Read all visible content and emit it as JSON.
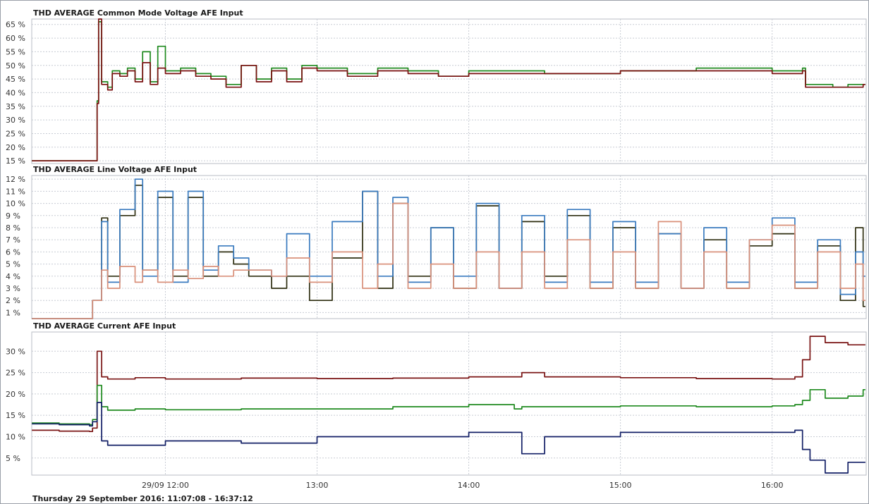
{
  "footer": "Thursday 29 September 2016: 11:07:08 - 16:37:12",
  "x_ticks": [
    {
      "label": "29/09 12:00",
      "t": 12.0
    },
    {
      "label": "13:00",
      "t": 13.0
    },
    {
      "label": "14:00",
      "t": 14.0
    },
    {
      "label": "15:00",
      "t": 15.0
    },
    {
      "label": "16:00",
      "t": 16.0
    }
  ],
  "chart_data": [
    {
      "type": "line",
      "title": "THD AVERAGE Common Mode Voltage AFE Input",
      "xlim": [
        11.119,
        16.62
      ],
      "ylim": [
        14,
        67
      ],
      "y_ticks": [
        15,
        20,
        25,
        30,
        35,
        40,
        45,
        50,
        55,
        60,
        65
      ],
      "y_tick_labels": [
        "15 %",
        "20 %",
        "25 %",
        "30 %",
        "35 %",
        "40 %",
        "45 %",
        "50 %",
        "55 %",
        "60 %",
        "65 %"
      ],
      "grid": true,
      "series": [
        {
          "color": "#1f8a1f",
          "x": [
            11.12,
            11.5,
            11.52,
            11.55,
            11.56,
            11.58,
            11.62,
            11.65,
            11.7,
            11.75,
            11.8,
            11.85,
            11.9,
            11.95,
            12.0,
            12.1,
            12.2,
            12.3,
            12.4,
            12.5,
            12.6,
            12.7,
            12.8,
            12.9,
            13.0,
            13.2,
            13.4,
            13.6,
            13.8,
            14.0,
            14.5,
            15.0,
            15.5,
            16.0,
            16.2,
            16.22,
            16.3,
            16.4,
            16.5,
            16.6
          ],
          "y": [
            15,
            15,
            15,
            37,
            66,
            44,
            42,
            48,
            47,
            49,
            45,
            55,
            44,
            57,
            48,
            49,
            47,
            46,
            43,
            50,
            45,
            49,
            45,
            50,
            49,
            47,
            49,
            48,
            46,
            48,
            47,
            48,
            49,
            48,
            49,
            43,
            43,
            42,
            43,
            43
          ]
        },
        {
          "color": "#7a1010",
          "x": [
            11.12,
            11.5,
            11.52,
            11.55,
            11.56,
            11.58,
            11.62,
            11.65,
            11.7,
            11.75,
            11.8,
            11.85,
            11.9,
            11.95,
            12.0,
            12.1,
            12.2,
            12.3,
            12.4,
            12.5,
            12.6,
            12.7,
            12.8,
            12.9,
            13.0,
            13.2,
            13.4,
            13.6,
            13.8,
            14.0,
            14.5,
            15.0,
            15.5,
            16.0,
            16.2,
            16.22,
            16.3,
            16.4,
            16.5,
            16.6
          ],
          "y": [
            15,
            15,
            15,
            36,
            67,
            43,
            41,
            47,
            46,
            48,
            44,
            51,
            43,
            49,
            47,
            48,
            46,
            45,
            42,
            50,
            44,
            48,
            44,
            49,
            48,
            46,
            48,
            47,
            46,
            47,
            47,
            48,
            48,
            47,
            48,
            42,
            42,
            42,
            42,
            43
          ]
        }
      ]
    },
    {
      "type": "line",
      "title": "THD AVERAGE Line Voltage AFE Input",
      "xlim": [
        11.119,
        16.62
      ],
      "ylim": [
        0.5,
        12.3
      ],
      "y_ticks": [
        1,
        2,
        3,
        4,
        5,
        6,
        7,
        8,
        9,
        10,
        11,
        12
      ],
      "y_tick_labels": [
        "1 %",
        "2 %",
        "3 %",
        "4 %",
        "5 %",
        "6 %",
        "7 %",
        "8 %",
        "9 %",
        "10 %",
        "11 %",
        "12 %"
      ],
      "grid": true,
      "series": [
        {
          "color": "#2e2e10",
          "x": [
            11.12,
            11.5,
            11.52,
            11.58,
            11.62,
            11.7,
            11.8,
            11.85,
            11.95,
            12.05,
            12.15,
            12.25,
            12.35,
            12.45,
            12.55,
            12.7,
            12.8,
            12.95,
            13.1,
            13.3,
            13.4,
            13.5,
            13.6,
            13.75,
            13.9,
            14.05,
            14.2,
            14.35,
            14.5,
            14.65,
            14.8,
            14.95,
            15.1,
            15.25,
            15.4,
            15.55,
            15.7,
            15.85,
            16.0,
            16.15,
            16.3,
            16.45,
            16.55,
            16.6
          ],
          "y": [
            0.5,
            0.5,
            2,
            8.8,
            4,
            9,
            11.5,
            4.5,
            10.5,
            4,
            10.5,
            4,
            6,
            5,
            4,
            3,
            4,
            2,
            5.5,
            11,
            3,
            10,
            4,
            8,
            3,
            9.8,
            3,
            8.5,
            4,
            9,
            3,
            8,
            3,
            7.5,
            3,
            7,
            3,
            6.5,
            7.5,
            3,
            6.5,
            2,
            8,
            1.5
          ]
        },
        {
          "color": "#3a7bbf",
          "x": [
            11.12,
            11.5,
            11.52,
            11.58,
            11.62,
            11.7,
            11.8,
            11.85,
            11.95,
            12.05,
            12.15,
            12.25,
            12.35,
            12.45,
            12.55,
            12.7,
            12.8,
            12.95,
            13.1,
            13.3,
            13.4,
            13.5,
            13.6,
            13.75,
            13.9,
            14.05,
            14.2,
            14.35,
            14.5,
            14.65,
            14.8,
            14.95,
            15.1,
            15.25,
            15.4,
            15.55,
            15.7,
            15.85,
            16.0,
            16.15,
            16.3,
            16.45,
            16.55,
            16.6
          ],
          "y": [
            0.5,
            0.5,
            2,
            8.5,
            3.5,
            9.5,
            12,
            4,
            11,
            3.5,
            11,
            4.5,
            6.5,
            5.5,
            4.5,
            4,
            7.5,
            4,
            8.5,
            11,
            4,
            10.5,
            3.5,
            8,
            4,
            10,
            3,
            9,
            3.5,
            9.5,
            3.5,
            8.5,
            3.5,
            7.5,
            3,
            8,
            3.5,
            7,
            8.8,
            3.5,
            7,
            2.5,
            6,
            4
          ]
        },
        {
          "color": "#d9907a",
          "x": [
            11.12,
            11.5,
            11.52,
            11.58,
            11.62,
            11.7,
            11.8,
            11.85,
            11.95,
            12.05,
            12.15,
            12.25,
            12.35,
            12.45,
            12.55,
            12.7,
            12.8,
            12.95,
            13.1,
            13.3,
            13.4,
            13.5,
            13.6,
            13.75,
            13.9,
            14.05,
            14.2,
            14.35,
            14.5,
            14.65,
            14.8,
            14.95,
            15.1,
            15.25,
            15.4,
            15.55,
            15.7,
            15.85,
            16.0,
            16.15,
            16.3,
            16.45,
            16.55,
            16.6
          ],
          "y": [
            0.5,
            0.5,
            2,
            4.5,
            3,
            4.8,
            3.5,
            4.5,
            3.5,
            4.5,
            3.8,
            4.8,
            4,
            4.5,
            4.5,
            4,
            5.5,
            3.5,
            6,
            3,
            5,
            10,
            3,
            5,
            3,
            6,
            3,
            6,
            3,
            7,
            3,
            6,
            3,
            8.5,
            3,
            6,
            3,
            7,
            8.2,
            3,
            6,
            3,
            5,
            2
          ]
        }
      ]
    },
    {
      "type": "line",
      "title": "THD AVERAGE Current AFE Input",
      "xlim": [
        11.119,
        16.62
      ],
      "ylim": [
        1,
        34.5
      ],
      "y_ticks": [
        5,
        10,
        15,
        20,
        25,
        30
      ],
      "y_tick_labels": [
        "5 %",
        "10 %",
        "15 %",
        "20 %",
        "25 %",
        "30 %"
      ],
      "grid": true,
      "series": [
        {
          "color": "#7a1414",
          "x": [
            11.12,
            11.3,
            11.5,
            11.52,
            11.55,
            11.58,
            11.62,
            11.8,
            12.0,
            12.5,
            13.0,
            13.5,
            14.0,
            14.3,
            14.35,
            14.5,
            15.0,
            15.5,
            16.0,
            16.15,
            16.2,
            16.25,
            16.35,
            16.5,
            16.6
          ],
          "y": [
            11.5,
            11.3,
            11.2,
            12,
            30,
            24,
            23.5,
            23.8,
            23.5,
            23.7,
            23.6,
            23.7,
            24,
            24,
            25,
            24,
            23.8,
            23.6,
            23.5,
            24,
            28,
            33.5,
            32,
            31.5,
            31.5
          ]
        },
        {
          "color": "#1f8a1f",
          "x": [
            11.12,
            11.3,
            11.5,
            11.52,
            11.55,
            11.58,
            11.62,
            11.8,
            12.0,
            12.5,
            13.0,
            13.5,
            14.0,
            14.3,
            14.35,
            14.5,
            15.0,
            15.5,
            16.0,
            16.15,
            16.2,
            16.25,
            16.35,
            16.5,
            16.6
          ],
          "y": [
            13.2,
            13,
            12.8,
            14,
            22,
            17,
            16.2,
            16.5,
            16.3,
            16.5,
            16.5,
            17,
            17.5,
            16.5,
            17,
            17,
            17.2,
            17,
            17.2,
            17.5,
            18.5,
            21,
            19,
            19.5,
            21
          ]
        },
        {
          "color": "#121f66",
          "x": [
            11.12,
            11.3,
            11.5,
            11.52,
            11.55,
            11.58,
            11.62,
            11.8,
            12.0,
            12.5,
            13.0,
            13.5,
            14.0,
            14.3,
            14.35,
            14.5,
            15.0,
            15.5,
            16.0,
            16.15,
            16.2,
            16.25,
            16.35,
            16.5,
            16.6
          ],
          "y": [
            13,
            12.8,
            12.5,
            13.5,
            18,
            9,
            8,
            8,
            9,
            8.5,
            10,
            10,
            11,
            11,
            6,
            10,
            11,
            11,
            11,
            11.5,
            7,
            4.5,
            1.5,
            4,
            4
          ]
        }
      ]
    }
  ]
}
